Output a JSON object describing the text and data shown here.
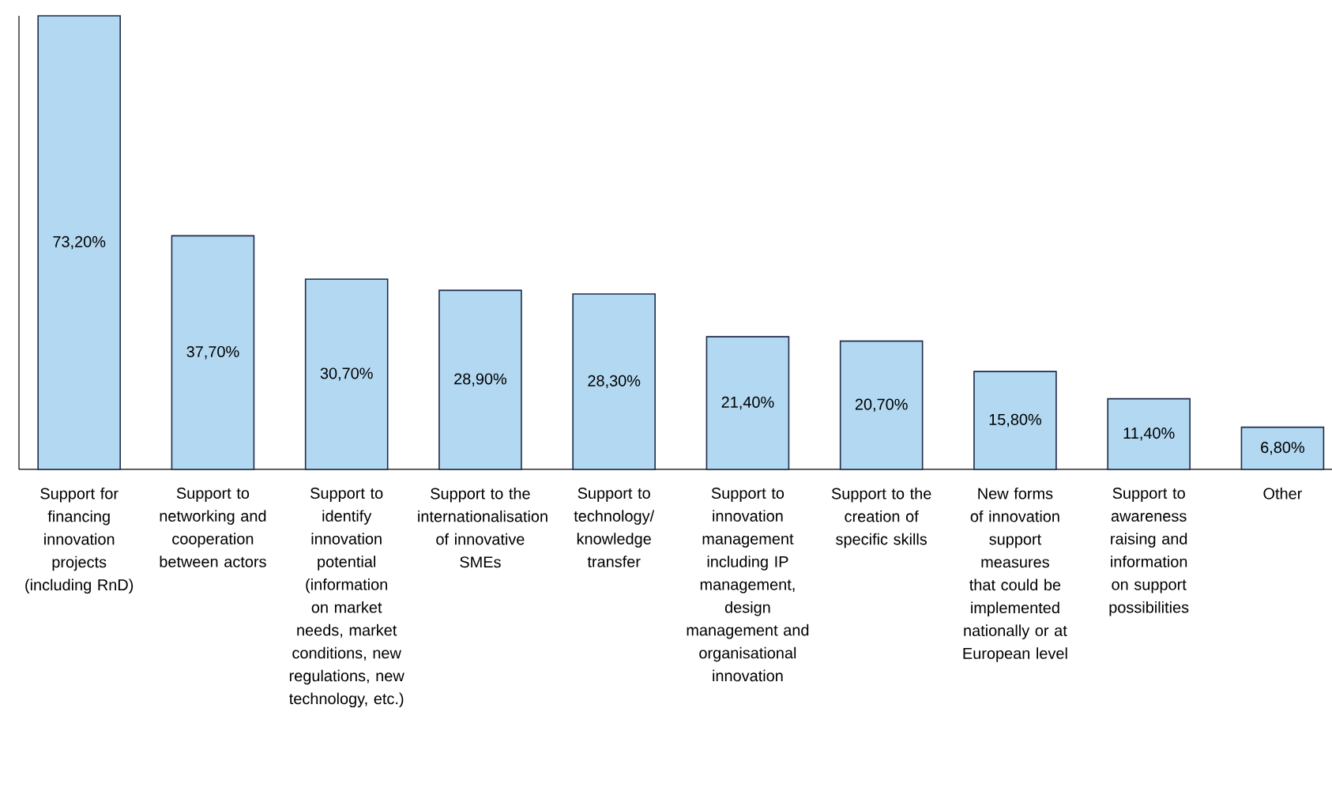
{
  "chart_data": {
    "type": "bar",
    "categories": [
      "Support for financing innovation projects (including RnD)",
      "Support to networking and cooperation between actors",
      "Support to identify innovation potential (information on market needs, market conditions, new regulations, new technology, etc.)",
      "Support to the internationalisation of innovative SMEs",
      "Support to technology/ knowledge transfer",
      "Support to innovation management including IP management, design management and organisational innovation",
      "Support to the creation of specific skills",
      "New forms of innovation support measures that could be implemented nationally or at European level",
      "Support to awareness raising and information on support possibilities",
      "Other"
    ],
    "values": [
      73.2,
      37.7,
      30.7,
      28.9,
      28.3,
      21.4,
      20.7,
      15.8,
      11.4,
      6.8
    ],
    "value_labels": [
      "73,20%",
      "37,70%",
      "30,70%",
      "28,90%",
      "28,30%",
      "21,40%",
      "20,70%",
      "15,80%",
      "11,40%",
      "6,80%"
    ],
    "color": "#b3d9f2"
  }
}
